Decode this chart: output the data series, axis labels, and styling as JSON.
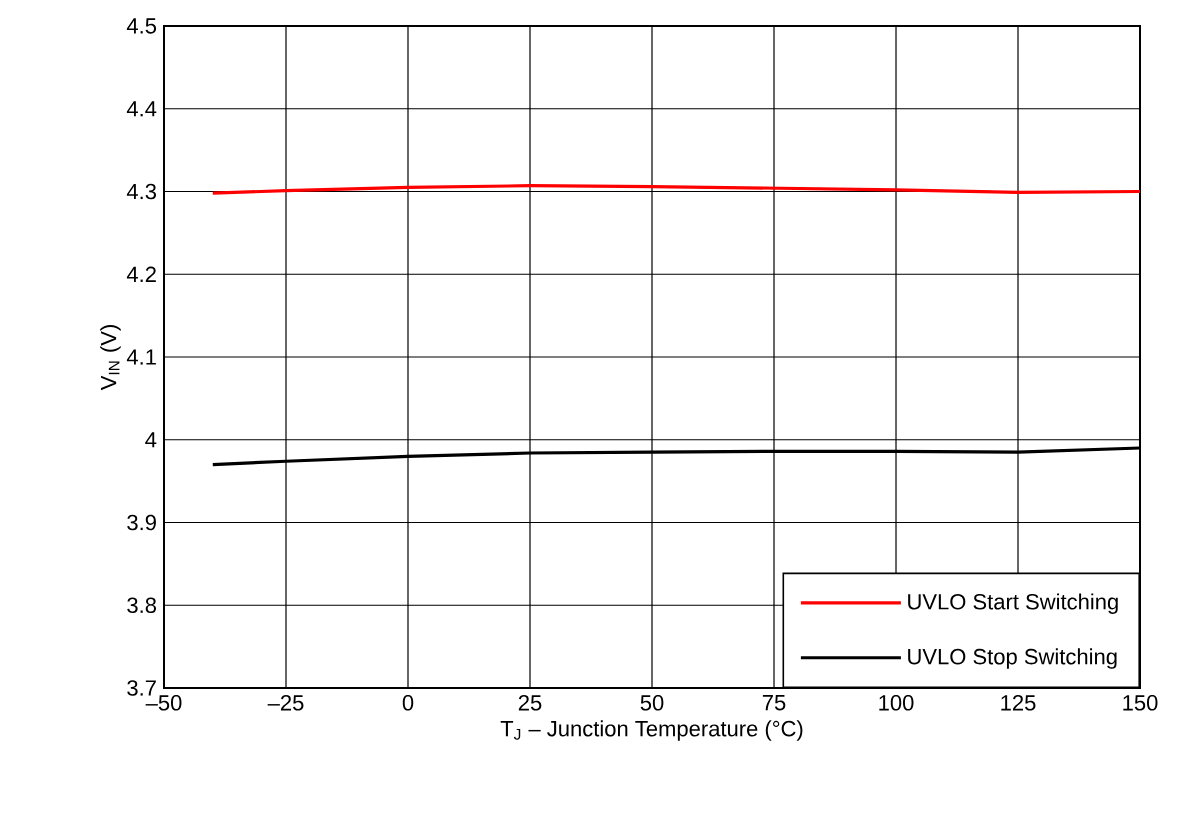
{
  "chart_data": {
    "type": "line",
    "xlabel": "T$_{J}$ – Junction Temperature (°C)",
    "ylabel": "V$_{IN}$ (V)",
    "x": [
      -40,
      -25,
      0,
      25,
      50,
      75,
      100,
      125,
      150
    ],
    "series": [
      {
        "name": "UVLO Start Switching",
        "color": "#ff0000",
        "values": [
          4.298,
          4.301,
          4.305,
          4.307,
          4.306,
          4.304,
          4.302,
          4.299,
          4.3
        ]
      },
      {
        "name": "UVLO Stop Switching",
        "color": "#000000",
        "values": [
          3.97,
          3.974,
          3.98,
          3.984,
          3.985,
          3.986,
          3.986,
          3.985,
          3.99
        ]
      }
    ],
    "xlim": [
      -50,
      150
    ],
    "xticks": [
      {
        "value": -50,
        "label": "–50"
      },
      {
        "value": -25,
        "label": "–25"
      },
      0,
      25,
      50,
      75,
      100,
      125,
      150
    ],
    "ylim": [
      3.7,
      4.5
    ],
    "yticks": [
      3.7,
      3.8,
      3.9,
      4,
      4.1,
      4.2,
      4.3,
      4.4,
      4.5
    ],
    "grid": true,
    "legend": "bottom right",
    "marker": "none",
    "line_style": "solid"
  }
}
